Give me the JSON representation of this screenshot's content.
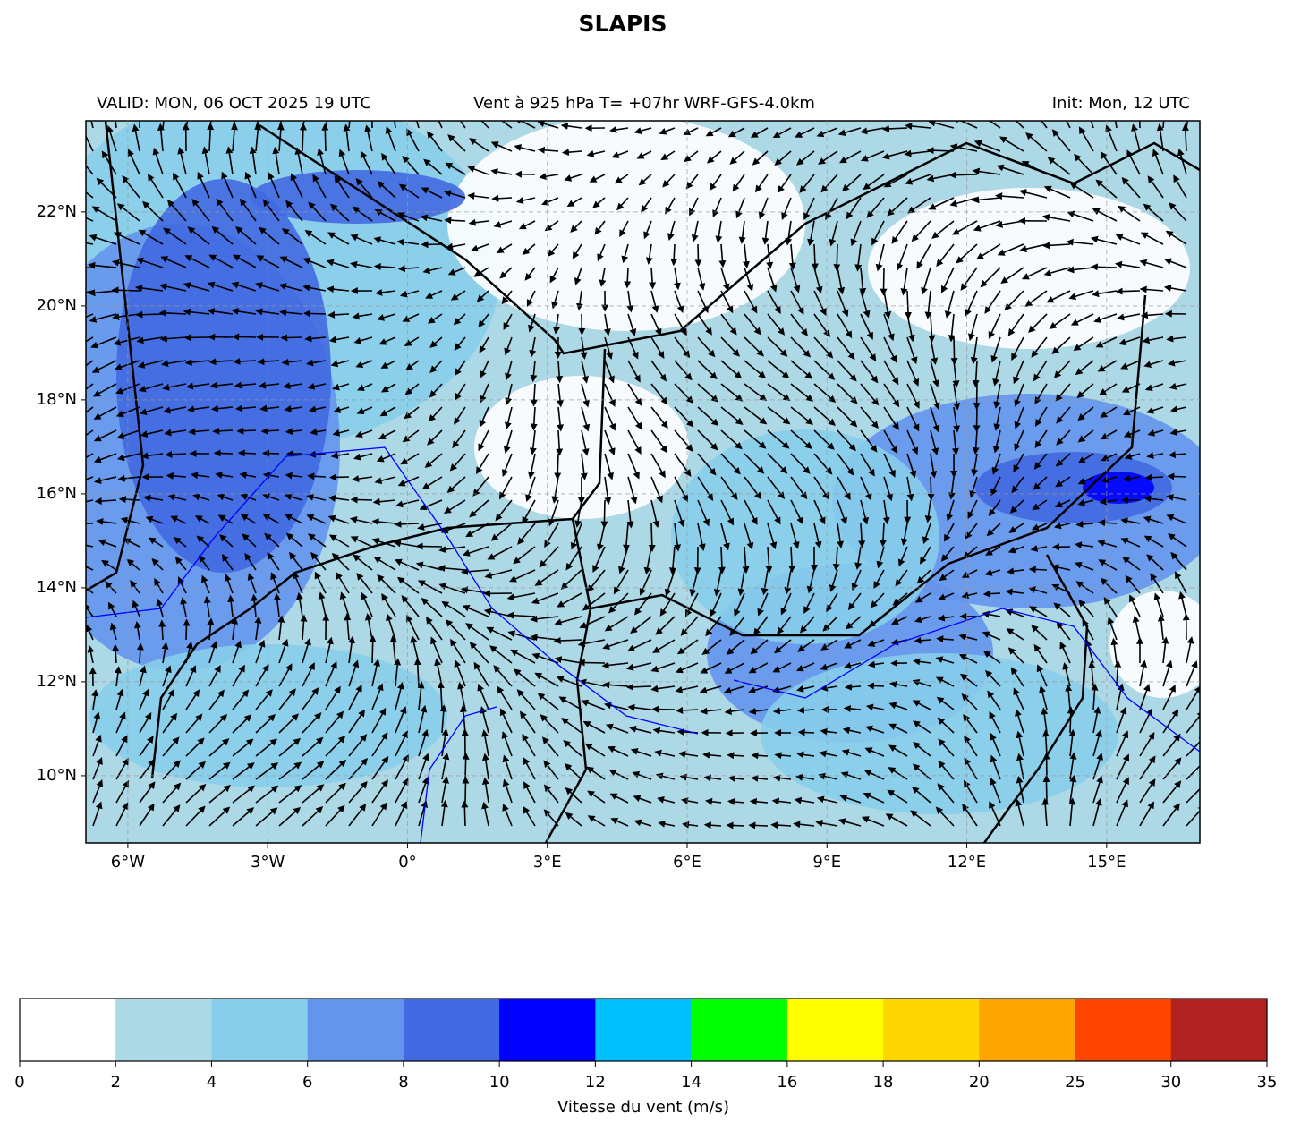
{
  "title": "SLAPIS",
  "subtitle_left": "VALID: MON, 06 OCT 2025 19 UTC",
  "subtitle_center": "Vent à 925 hPa T= +07hr  WRF-GFS-4.0km",
  "subtitle_right": "Init: Mon, 12 UTC",
  "map": {
    "xlim": [
      -6.9,
      17.0
    ],
    "ylim": [
      8.57,
      23.94
    ],
    "grid": true,
    "xticks": [
      {
        "value": -6,
        "label": "6°W"
      },
      {
        "value": -3,
        "label": "3°W"
      },
      {
        "value": 0,
        "label": "0°"
      },
      {
        "value": 3,
        "label": "3°E"
      },
      {
        "value": 6,
        "label": "6°E"
      },
      {
        "value": 9,
        "label": "9°E"
      },
      {
        "value": 12,
        "label": "12°E"
      },
      {
        "value": 15,
        "label": "15°E"
      }
    ],
    "yticks": [
      {
        "value": 10,
        "label": "10°N"
      },
      {
        "value": 12,
        "label": "12°N"
      },
      {
        "value": 14,
        "label": "14°N"
      },
      {
        "value": 16,
        "label": "16°N"
      },
      {
        "value": 18,
        "label": "18°N"
      },
      {
        "value": 20,
        "label": "20°N"
      },
      {
        "value": 22,
        "label": "22°N"
      }
    ]
  },
  "colorbar": {
    "boundaries": [
      0,
      2,
      4,
      6,
      8,
      10,
      12,
      14,
      16,
      18,
      20,
      25,
      30,
      35
    ],
    "colors": [
      "#ffffff",
      "#add8e6",
      "#87ceeb",
      "#6495ed",
      "#4169e1",
      "#0000ff",
      "#00bfff",
      "#00ff00",
      "#ffff00",
      "#ffd700",
      "#ffa500",
      "#ff4500",
      "#b22222"
    ],
    "label": "Vitesse du vent (m/s)"
  }
}
